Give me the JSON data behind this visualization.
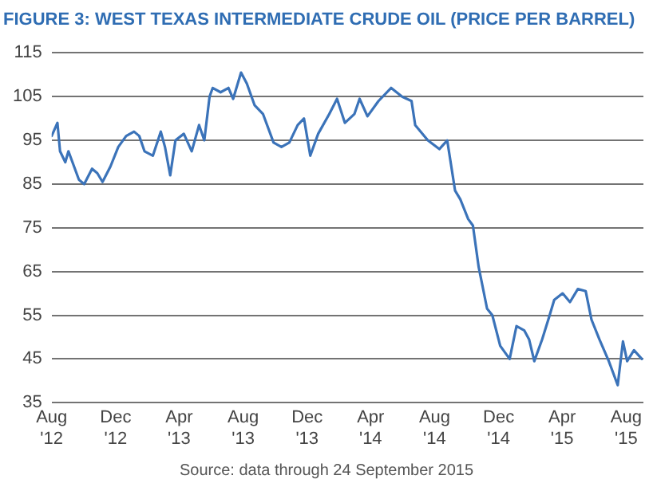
{
  "chart_data": {
    "type": "line",
    "title": "FIGURE 3: WEST TEXAS INTERMEDIATE CRUDE OIL (PRICE PER BARREL)",
    "x": [
      "2012-08-01",
      "2012-08-12",
      "2012-08-17",
      "2012-08-27",
      "2012-09-02",
      "2012-09-22",
      "2012-10-02",
      "2012-10-17",
      "2012-10-27",
      "2012-11-06",
      "2012-11-21",
      "2012-12-06",
      "2012-12-21",
      "2013-01-05",
      "2013-01-15",
      "2013-01-25",
      "2013-02-10",
      "2013-02-25",
      "2013-03-05",
      "2013-03-15",
      "2013-03-25",
      "2013-04-10",
      "2013-04-25",
      "2013-05-09",
      "2013-05-19",
      "2013-05-29",
      "2013-06-04",
      "2013-06-19",
      "2013-07-04",
      "2013-07-13",
      "2013-07-28",
      "2013-08-08",
      "2013-08-23",
      "2013-09-08",
      "2013-09-28",
      "2013-10-13",
      "2013-10-28",
      "2013-11-13",
      "2013-11-25",
      "2013-12-07",
      "2013-12-22",
      "2014-01-12",
      "2014-01-27",
      "2014-02-11",
      "2014-03-01",
      "2014-03-11",
      "2014-03-26",
      "2014-04-16",
      "2014-05-10",
      "2014-05-31",
      "2014-06-18",
      "2014-06-25",
      "2014-07-19",
      "2014-08-10",
      "2014-08-25",
      "2014-09-09",
      "2014-09-19",
      "2014-10-04",
      "2014-10-13",
      "2014-10-24",
      "2014-11-09",
      "2014-11-19",
      "2014-12-04",
      "2014-12-22",
      "2015-01-04",
      "2015-01-19",
      "2015-01-28",
      "2015-02-07",
      "2015-02-22",
      "2015-03-07",
      "2015-03-17",
      "2015-04-02",
      "2015-04-16",
      "2015-05-01",
      "2015-05-16",
      "2015-05-27",
      "2015-06-11",
      "2015-06-29",
      "2015-07-16",
      "2015-07-26",
      "2015-08-03",
      "2015-08-16",
      "2015-08-31"
    ],
    "series": [
      {
        "color": "#3b73b9",
        "values": [
          96,
          99,
          92.5,
          90,
          92.5,
          86,
          85,
          88.5,
          87.5,
          85.5,
          89,
          93.5,
          96,
          97,
          96,
          92.5,
          91.5,
          97,
          93.5,
          87,
          95,
          96.5,
          92.5,
          98.5,
          95,
          105,
          107,
          106,
          107,
          104.5,
          110.5,
          108,
          103,
          101,
          94.5,
          93.5,
          94.5,
          98.5,
          100,
          91.5,
          96.5,
          101,
          104.5,
          99,
          101,
          104.5,
          100.5,
          104,
          107,
          105,
          104,
          98.5,
          95,
          93,
          95,
          83.5,
          81.5,
          77,
          75.5,
          66,
          56.5,
          55,
          48,
          45,
          52.5,
          51.5,
          49.5,
          44.5,
          49.5,
          54.5,
          58.5,
          60,
          58,
          61,
          60.5,
          54,
          49.5,
          44.5,
          39,
          49,
          44.5,
          47,
          45
        ]
      }
    ],
    "xlim": [
      "2012-08-01",
      "2015-09-03"
    ],
    "xticks": [
      {
        "value": "2012-08-01",
        "label": "Aug\n'12"
      },
      {
        "value": "2012-12-01",
        "label": "Dec\n'12"
      },
      {
        "value": "2013-04-01",
        "label": "Apr\n'13"
      },
      {
        "value": "2013-08-01",
        "label": "Aug\n'13"
      },
      {
        "value": "2013-12-01",
        "label": "Dec\n'13"
      },
      {
        "value": "2014-04-01",
        "label": "Apr\n'14"
      },
      {
        "value": "2014-08-01",
        "label": "Aug\n'14"
      },
      {
        "value": "2014-12-01",
        "label": "Dec\n'14"
      },
      {
        "value": "2015-04-01",
        "label": "Apr\n'15"
      },
      {
        "value": "2015-08-01",
        "label": "Aug\n'15"
      }
    ],
    "ylim": [
      35,
      115
    ],
    "yticks": [
      35,
      45,
      55,
      65,
      75,
      85,
      95,
      105,
      115
    ],
    "grid": "y",
    "legend": false,
    "marker": "none",
    "line_style": "solid",
    "annotations": [
      "Source: data through 24 September 2015"
    ]
  }
}
